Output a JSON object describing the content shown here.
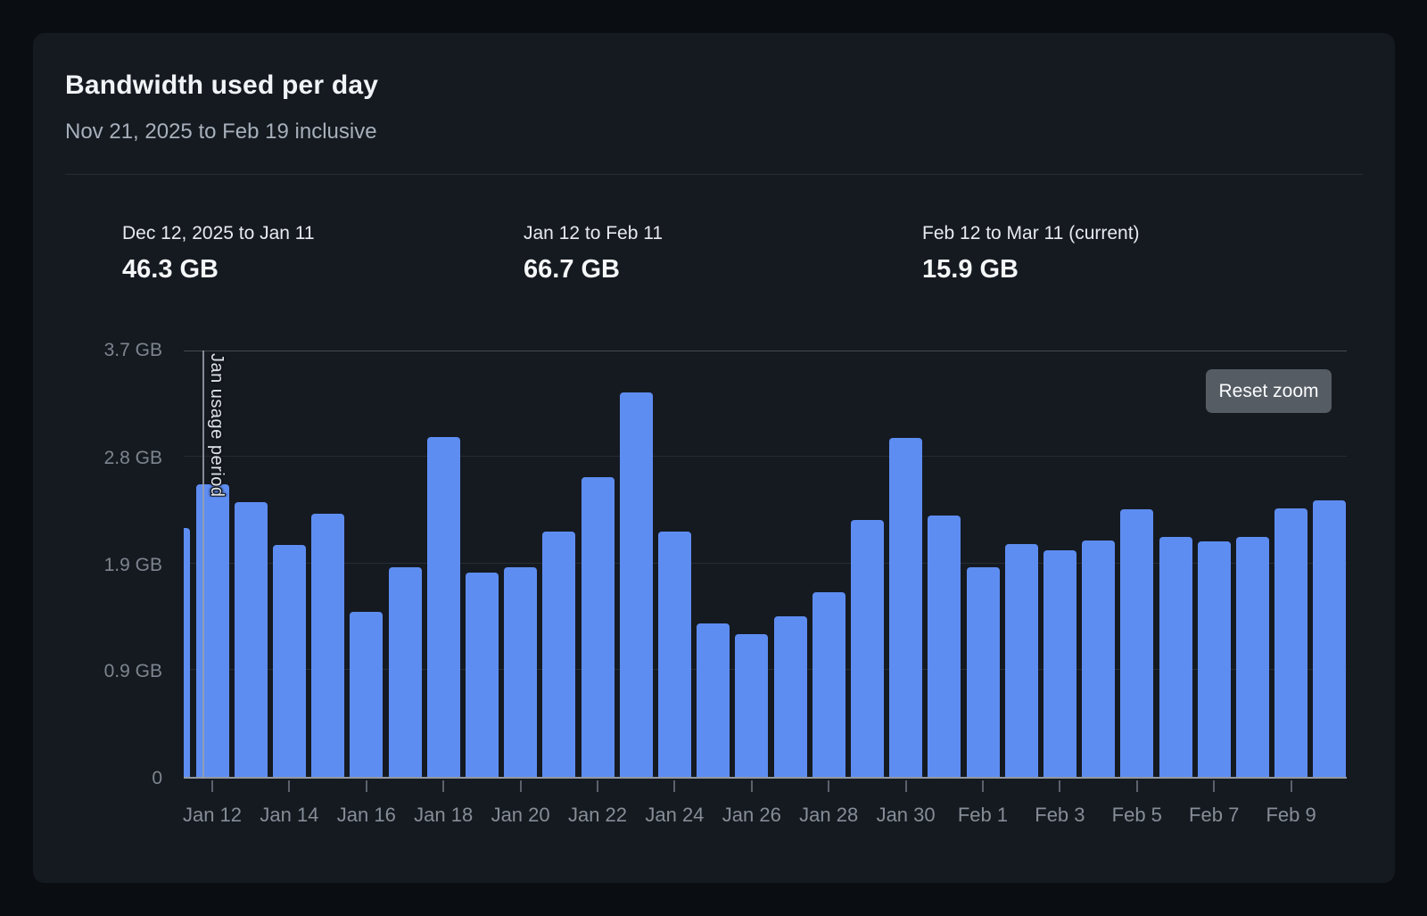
{
  "card": {
    "title": "Bandwidth used per day",
    "subtitle": "Nov 21, 2025 to Feb 19 inclusive"
  },
  "stats": [
    {
      "label": "Dec 12, 2025 to Jan 11",
      "value": "46.3 GB"
    },
    {
      "label": "Jan 12 to Feb 11",
      "value": "66.7 GB"
    },
    {
      "label": "Feb 12 to Mar 11 (current)",
      "value": "15.9 GB"
    }
  ],
  "reset_zoom_label": "Reset zoom",
  "annotation": {
    "label": "Jan usage period"
  },
  "colors": {
    "page_bg": "#0a0d12",
    "card_bg": "#151a21",
    "bar": "#5e8df2",
    "gridline": "#262c34",
    "axis_text": "#828992",
    "button_bg": "#565c64"
  },
  "chart_data": {
    "type": "bar",
    "title": "Bandwidth used per day",
    "xlabel": "",
    "ylabel": "",
    "unit": "GB",
    "ylim": [
      0,
      3.73
    ],
    "grid": true,
    "legend": false,
    "zoomed": true,
    "x": [
      "Jan 11",
      "Jan 12",
      "Jan 13",
      "Jan 14",
      "Jan 15",
      "Jan 16",
      "Jan 17",
      "Jan 18",
      "Jan 19",
      "Jan 20",
      "Jan 21",
      "Jan 22",
      "Jan 23",
      "Jan 24",
      "Jan 25",
      "Jan 26",
      "Jan 27",
      "Jan 28",
      "Jan 29",
      "Jan 30",
      "Jan 31",
      "Feb 1",
      "Feb 2",
      "Feb 3",
      "Feb 4",
      "Feb 5",
      "Feb 6",
      "Feb 7",
      "Feb 8",
      "Feb 9",
      "Feb 10"
    ],
    "values": [
      2.17,
      2.55,
      2.39,
      2.02,
      2.29,
      1.44,
      1.83,
      2.96,
      1.78,
      1.83,
      2.14,
      2.61,
      3.35,
      2.14,
      1.34,
      1.24,
      1.4,
      1.61,
      2.24,
      2.95,
      2.28,
      1.83,
      2.03,
      1.97,
      2.06,
      2.33,
      2.09,
      2.05,
      2.09,
      2.34,
      2.41
    ],
    "first_bar_clipped": true,
    "y_ticks": [
      {
        "value": 0.0,
        "label": "0"
      },
      {
        "value": 0.93,
        "label": "0.9 GB"
      },
      {
        "value": 1.86,
        "label": "1.9 GB"
      },
      {
        "value": 2.79,
        "label": "2.8 GB"
      },
      {
        "value": 3.73,
        "label": "3.7 GB"
      }
    ],
    "x_tick_labels": [
      "Jan 12",
      "Jan 14",
      "Jan 16",
      "Jan 18",
      "Jan 20",
      "Jan 22",
      "Jan 24",
      "Jan 26",
      "Jan 28",
      "Jan 30",
      "Feb 1",
      "Feb 3",
      "Feb 5",
      "Feb 7",
      "Feb 9"
    ],
    "annotation": {
      "label": "Jan usage period",
      "x": "Jan 12 period start"
    }
  }
}
